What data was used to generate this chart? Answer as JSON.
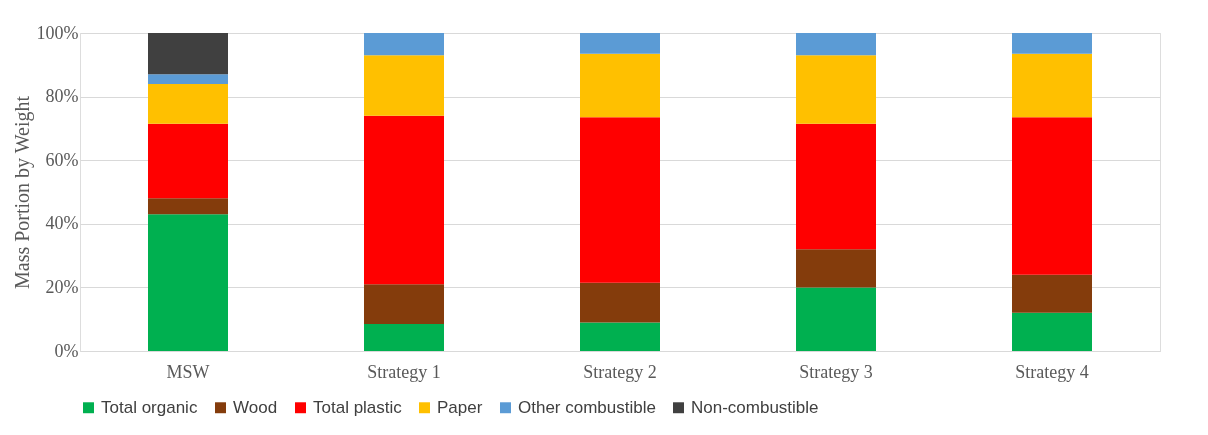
{
  "chart_data": {
    "type": "bar",
    "stacked": true,
    "ylabel": "Mass Portion by Weight",
    "categories": [
      "MSW",
      "Strategy 1",
      "Strategy 2",
      "Strategy 3",
      "Strategy 4"
    ],
    "series": [
      {
        "name": "Total organic",
        "color": "#00b050",
        "values": [
          43,
          8.5,
          9,
          20,
          12
        ]
      },
      {
        "name": "Wood",
        "color": "#843c0c",
        "values": [
          5,
          12.5,
          12.5,
          12,
          12
        ]
      },
      {
        "name": "Total plastic",
        "color": "#ff0000",
        "values": [
          23.5,
          53,
          52,
          39.5,
          49.5
        ]
      },
      {
        "name": "Paper",
        "color": "#ffc000",
        "values": [
          12.5,
          19,
          20,
          21.5,
          20
        ]
      },
      {
        "name": "Other combustible",
        "color": "#5b9bd5",
        "values": [
          3,
          7,
          6.5,
          7,
          6.5
        ]
      },
      {
        "name": "Non-combustible",
        "color": "#404040",
        "values": [
          13,
          null,
          null,
          null,
          null
        ]
      }
    ],
    "ylim": [
      0,
      100
    ],
    "yticks": [
      {
        "value": 0,
        "label": "0%"
      },
      {
        "value": 20,
        "label": "20%"
      },
      {
        "value": 40,
        "label": "40%"
      },
      {
        "value": 60,
        "label": "60%"
      },
      {
        "value": 80,
        "label": "80%"
      },
      {
        "value": 100,
        "label": "100%"
      }
    ],
    "grid": "y",
    "legend": "bottom"
  }
}
